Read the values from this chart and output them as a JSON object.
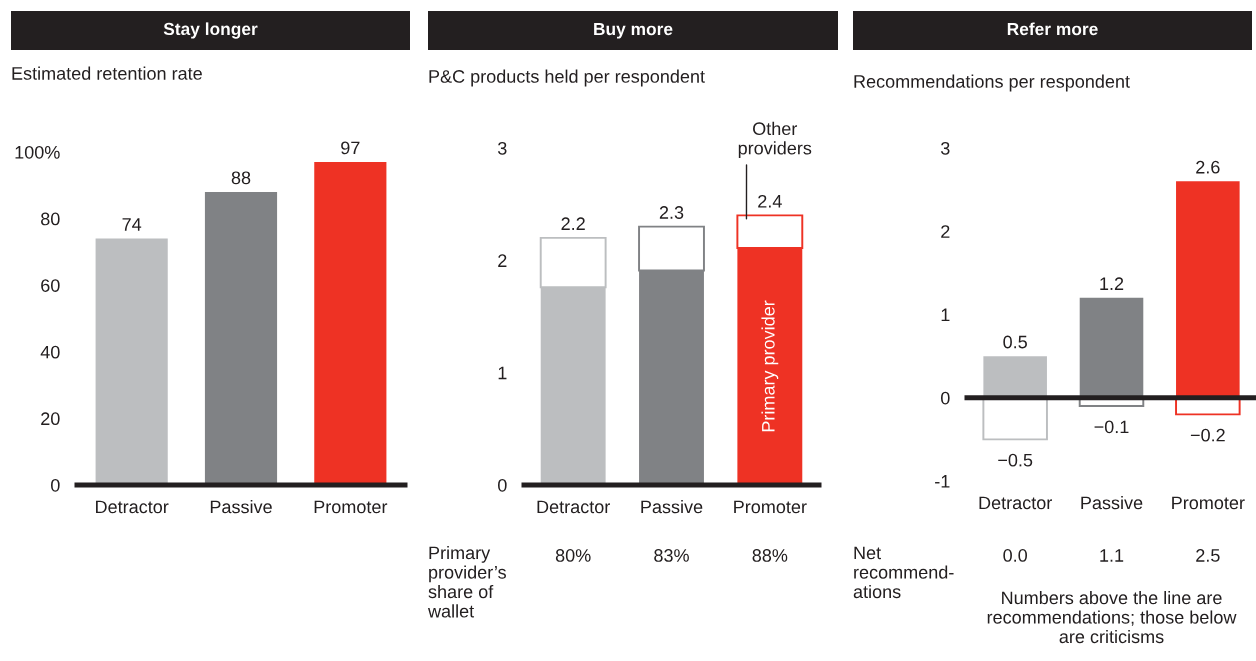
{
  "chart_data": [
    {
      "type": "bar",
      "title": "Stay longer",
      "subtitle": "Estimated retention rate",
      "categories": [
        "Detractor",
        "Passive",
        "Promoter"
      ],
      "values": [
        74,
        88,
        97
      ],
      "colors": [
        "#bcbec0",
        "#808285",
        "#ee3224"
      ],
      "data_labels": true,
      "ylim": [
        0,
        100
      ],
      "yticks": [
        0,
        20,
        40,
        60,
        80,
        {
          "value": 100,
          "label": "100%"
        }
      ]
    },
    {
      "type": "bar",
      "stacked": true,
      "title": "Buy more",
      "subtitle": "P&C products held per respondent",
      "categories": [
        "Detractor",
        "Passive",
        "Promoter"
      ],
      "series": [
        {
          "name": "Primary provider",
          "colors": [
            "#bcbec0",
            "#808285",
            "#ee3224"
          ],
          "values": [
            1.76,
            1.91,
            2.11
          ]
        },
        {
          "name": "Other\nproviders",
          "colors": [
            "#bcbec0",
            "#808285",
            "#ee3224"
          ],
          "line_style": "solid",
          "values": [
            0.44,
            0.39,
            0.29
          ]
        }
      ],
      "totals": [
        "2.2",
        "2.3",
        "2.4"
      ],
      "ylim": [
        0,
        3
      ],
      "yticks": [
        0,
        1,
        2,
        3
      ],
      "annotations": [
        "Primary\nprovider’s\nshare of\nwallet",
        "80%",
        "83%",
        "88%"
      ]
    },
    {
      "type": "bar",
      "stacked": true,
      "title": "Refer more",
      "subtitle": "Recommendations per respondent",
      "categories": [
        "Detractor",
        "Passive",
        "Promoter"
      ],
      "series": [
        {
          "colors": [
            "#bcbec0",
            "#808285",
            "#ee3224"
          ],
          "values": [
            0.5,
            1.2,
            2.6
          ],
          "value_labels": [
            "0.5",
            "1.2",
            "2.6"
          ]
        },
        {
          "colors": [
            "#bcbec0",
            "#808285",
            "#ee3224"
          ],
          "line_style": "solid",
          "values": [
            -0.5,
            -0.1,
            -0.2
          ],
          "value_labels": [
            "−0.5",
            "−0.1",
            "−0.2"
          ]
        }
      ],
      "ylim": [
        -1,
        3
      ],
      "yticks": [
        -1,
        0,
        1,
        2,
        3
      ],
      "annotations": [
        "Net\nrecommend-\nations",
        "0.0",
        "1.1",
        "2.5",
        "Numbers above the line are\nrecommendations; those below\nare criticisms"
      ]
    }
  ]
}
